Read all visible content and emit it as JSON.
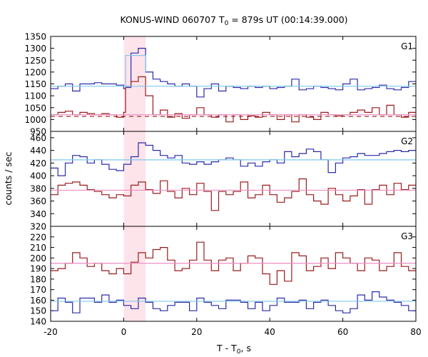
{
  "title": {
    "prefix": "KONUS-WIND 060707 T",
    "sub": "0",
    "suffix": " = 879s UT (00:14:39.000)"
  },
  "ylabel": "counts / sec",
  "xlabel": {
    "prefix": "T - T",
    "sub": "0",
    "suffix": ", s"
  },
  "colors": {
    "blue": "#2b2ba8",
    "red": "#9a1c1c",
    "light_blue": "#7fc8ee",
    "pink": "#ee8fc4",
    "shade": "#fde4ea",
    "dash": "#9a1c1c"
  },
  "chart_data": {
    "type": "line",
    "x_range": [
      -20,
      80
    ],
    "x_ticks": [
      -20,
      0,
      20,
      40,
      60,
      80
    ],
    "shaded_interval": [
      0,
      6
    ],
    "panels": [
      {
        "name": "G1",
        "y_range": [
          950,
          1350
        ],
        "y_ticks": [
          950,
          1000,
          1050,
          1100,
          1150,
          1200,
          1250,
          1300,
          1350
        ],
        "series": [
          {
            "color_key": "blue",
            "style": "step",
            "edges": [
              -20,
              -18,
              -16,
              -14,
              -12,
              -10,
              -8,
              -6,
              -4,
              -2,
              0,
              0.5,
              2,
              4,
              6,
              8,
              10,
              12,
              14,
              16,
              18,
              20,
              22,
              24,
              26,
              28,
              30,
              32,
              34,
              36,
              38,
              40,
              42,
              44,
              46,
              48,
              50,
              52,
              54,
              56,
              58,
              60,
              62,
              64,
              66,
              68,
              70,
              72,
              74,
              76,
              78,
              80
            ],
            "values": [
              1130,
              1140,
              1150,
              1120,
              1150,
              1150,
              1155,
              1150,
              1150,
              1145,
              1130,
              1135,
              1280,
              1300,
              1200,
              1170,
              1160,
              1150,
              1140,
              1150,
              1140,
              1095,
              1130,
              1150,
              1120,
              1140,
              1135,
              1130,
              1140,
              1135,
              1140,
              1130,
              1135,
              1140,
              1170,
              1125,
              1130,
              1140,
              1135,
              1130,
              1125,
              1150,
              1170,
              1125,
              1130,
              1135,
              1145,
              1130,
              1125,
              1135,
              1160
            ]
          },
          {
            "color_key": "red",
            "style": "step",
            "edges": [
              -20,
              -18,
              -16,
              -14,
              -12,
              -10,
              -8,
              -6,
              -4,
              -2,
              0,
              0.5,
              2,
              4,
              6,
              8,
              10,
              12,
              14,
              16,
              18,
              20,
              22,
              24,
              26,
              28,
              30,
              32,
              34,
              36,
              38,
              40,
              42,
              44,
              46,
              48,
              50,
              52,
              54,
              56,
              58,
              60,
              62,
              64,
              66,
              68,
              70,
              72,
              74,
              76,
              78,
              80
            ],
            "values": [
              1020,
              1030,
              1035,
              1020,
              1030,
              1025,
              1020,
              1025,
              1020,
              1010,
              1030,
              1140,
              1160,
              1180,
              1100,
              1020,
              1040,
              1010,
              1025,
              1005,
              1020,
              1050,
              1020,
              1010,
              1020,
              990,
              1020,
              1000,
              1015,
              1010,
              1030,
              1020,
              1000,
              1020,
              990,
              1020,
              1010,
              1000,
              1030,
              1020,
              1015,
              1020,
              1030,
              1040,
              1030,
              1050,
              1020,
              1060,
              1020,
              1010,
              1030
            ]
          },
          {
            "color_key": "light_blue",
            "style": "flat",
            "y": 1140
          },
          {
            "color_key": "pink",
            "style": "flat",
            "y": 1020
          },
          {
            "color_key": "dash",
            "style": "dashed",
            "y": 1013
          },
          {
            "color_key": "light_blue",
            "style": "step",
            "edges": [
              0.5,
              6
            ],
            "values": [
              1270
            ]
          }
        ]
      },
      {
        "name": "G2",
        "y_range": [
          320,
          470
        ],
        "y_ticks": [
          320,
          340,
          360,
          380,
          400,
          420,
          440,
          460
        ],
        "series": [
          {
            "color_key": "blue",
            "style": "step",
            "edges": [
              -20,
              -18,
              -16,
              -14,
              -12,
              -10,
              -8,
              -6,
              -4,
              -2,
              0,
              2,
              4,
              6,
              8,
              10,
              12,
              14,
              16,
              18,
              20,
              22,
              24,
              26,
              28,
              30,
              32,
              34,
              36,
              38,
              40,
              42,
              44,
              46,
              48,
              50,
              52,
              54,
              56,
              58,
              60,
              62,
              64,
              66,
              68,
              70,
              72,
              74,
              76,
              78,
              80
            ],
            "values": [
              412,
              400,
              420,
              432,
              430,
              420,
              425,
              418,
              410,
              408,
              418,
              430,
              452,
              448,
              440,
              432,
              428,
              432,
              420,
              418,
              422,
              418,
              422,
              425,
              428,
              425,
              415,
              420,
              415,
              422,
              425,
              420,
              438,
              430,
              435,
              442,
              438,
              425,
              405,
              420,
              428,
              430,
              435,
              432,
              432,
              435,
              438,
              440,
              438,
              440
            ]
          },
          {
            "color_key": "red",
            "style": "step",
            "edges": [
              -20,
              -18,
              -16,
              -14,
              -12,
              -10,
              -8,
              -6,
              -4,
              -2,
              0,
              2,
              4,
              6,
              8,
              10,
              12,
              14,
              16,
              18,
              20,
              22,
              24,
              26,
              28,
              30,
              32,
              34,
              36,
              38,
              40,
              42,
              44,
              46,
              48,
              50,
              52,
              54,
              56,
              58,
              60,
              62,
              64,
              66,
              68,
              70,
              72,
              74,
              76,
              78,
              80
            ],
            "values": [
              370,
              385,
              388,
              390,
              385,
              378,
              375,
              370,
              365,
              370,
              368,
              385,
              390,
              378,
              372,
              392,
              375,
              365,
              380,
              370,
              388,
              375,
              345,
              375,
              370,
              375,
              390,
              365,
              370,
              385,
              370,
              358,
              365,
              375,
              395,
              370,
              360,
              355,
              380,
              370,
              360,
              368,
              378,
              355,
              378,
              385,
              370,
              388,
              378,
              385
            ]
          },
          {
            "color_key": "light_blue",
            "style": "flat",
            "y": 425
          },
          {
            "color_key": "pink",
            "style": "flat",
            "y": 377
          }
        ]
      },
      {
        "name": "G3",
        "y_range": [
          140,
          230
        ],
        "y_ticks": [
          140,
          150,
          160,
          170,
          180,
          190,
          200,
          210,
          220
        ],
        "series": [
          {
            "color_key": "red",
            "style": "step",
            "edges": [
              -20,
              -18,
              -16,
              -14,
              -12,
              -10,
              -8,
              -6,
              -4,
              -2,
              0,
              2,
              4,
              6,
              8,
              10,
              12,
              14,
              16,
              18,
              20,
              22,
              24,
              26,
              28,
              30,
              32,
              34,
              36,
              38,
              40,
              42,
              44,
              46,
              48,
              50,
              52,
              54,
              56,
              58,
              60,
              62,
              64,
              66,
              68,
              70,
              72,
              74,
              76,
              78,
              80
            ],
            "values": [
              188,
              190,
              195,
              205,
              200,
              192,
              195,
              188,
              185,
              190,
              185,
              196,
              205,
              200,
              208,
              210,
              198,
              188,
              190,
              198,
              215,
              198,
              188,
              198,
              200,
              188,
              195,
              202,
              200,
              185,
              175,
              188,
              178,
              205,
              202,
              188,
              192,
              200,
              190,
              205,
              200,
              195,
              188,
              200,
              198,
              188,
              192,
              205,
              192,
              188
            ]
          },
          {
            "color_key": "blue",
            "style": "step",
            "edges": [
              -20,
              -18,
              -16,
              -14,
              -12,
              -10,
              -8,
              -6,
              -4,
              -2,
              0,
              2,
              4,
              6,
              8,
              10,
              12,
              14,
              16,
              18,
              20,
              22,
              24,
              26,
              28,
              30,
              32,
              34,
              36,
              38,
              40,
              42,
              44,
              46,
              48,
              50,
              52,
              54,
              56,
              58,
              60,
              62,
              64,
              66,
              68,
              70,
              72,
              74,
              76,
              78,
              80
            ],
            "values": [
              150,
              162,
              158,
              148,
              162,
              162,
              158,
              165,
              158,
              160,
              155,
              152,
              162,
              158,
              152,
              150,
              155,
              158,
              158,
              150,
              162,
              158,
              155,
              152,
              160,
              160,
              158,
              152,
              158,
              150,
              155,
              162,
              158,
              158,
              160,
              152,
              158,
              160,
              155,
              150,
              148,
              152,
              165,
              160,
              168,
              163,
              160,
              158,
              155,
              150
            ]
          },
          {
            "color_key": "pink",
            "style": "flat",
            "y": 195
          },
          {
            "color_key": "light_blue",
            "style": "flat",
            "y": 159
          }
        ]
      }
    ]
  }
}
